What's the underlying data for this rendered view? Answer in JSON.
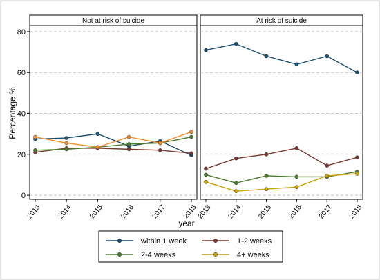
{
  "chart_data": {
    "type": "line",
    "ylabel": "Percentage %",
    "xlabel": "year",
    "x": [
      2013,
      2014,
      2015,
      2016,
      2017,
      2018
    ],
    "yticks": [
      0,
      20,
      40,
      60,
      80
    ],
    "ylim": [
      -2,
      83
    ],
    "grid": true,
    "legend_position": "bottom",
    "panels": [
      {
        "title": "Not at risk of suicide",
        "series": [
          {
            "name": "within 1 week",
            "values": [
              27.5,
              28.0,
              30.0,
              24.0,
              26.5,
              19.5
            ]
          },
          {
            "name": "1-2 weeks",
            "values": [
              21.0,
              23.0,
              23.0,
              22.5,
              22.0,
              20.5
            ]
          },
          {
            "name": "2-4 weeks",
            "values": [
              22.0,
              22.5,
              23.5,
              25.0,
              25.5,
              28.5
            ]
          },
          {
            "name": "4+ weeks",
            "values": [
              28.5,
              25.5,
              23.5,
              28.5,
              25.5,
              31.0
            ]
          }
        ]
      },
      {
        "title": "At risk of suicide",
        "series": [
          {
            "name": "within 1 week",
            "values": [
              71.0,
              74.0,
              68.0,
              64.0,
              68.0,
              60.0
            ]
          },
          {
            "name": "1-2 weeks",
            "values": [
              13.0,
              18.0,
              20.0,
              23.0,
              14.5,
              18.5
            ]
          },
          {
            "name": "2-4 weeks",
            "values": [
              10.0,
              6.0,
              9.5,
              9.0,
              9.0,
              11.5
            ]
          },
          {
            "name": "4+ weeks",
            "values": [
              6.5,
              2.0,
              3.0,
              4.0,
              9.5,
              10.5
            ]
          }
        ]
      }
    ],
    "legend": [
      "within 1 week",
      "1-2 weeks",
      "2-4 weeks",
      "4+ weeks"
    ],
    "colors": {
      "within 1 week": "#1b4f72",
      "1-2 weeks": "#7b3b32",
      "2-4 weeks": "#4a7a2a",
      "4+ weeks": "#d4a300"
    },
    "panel_4plus_override_colors": [
      "#f28e2b",
      "#c9a400"
    ]
  }
}
